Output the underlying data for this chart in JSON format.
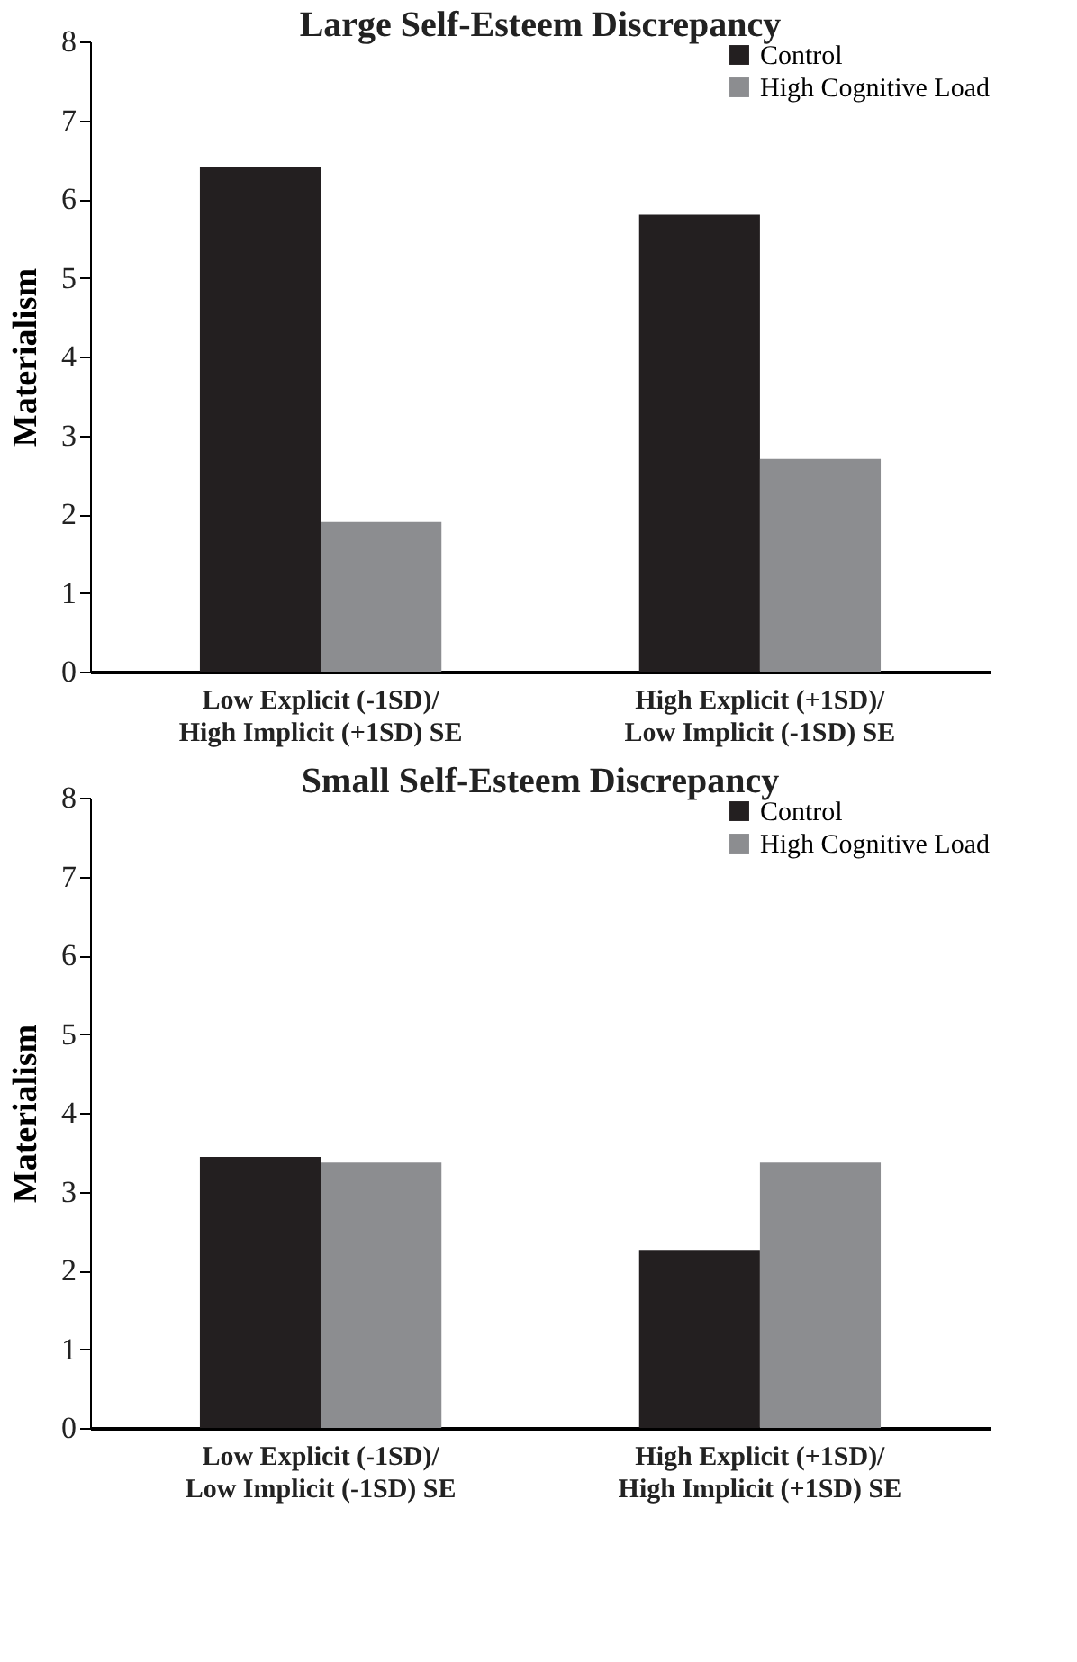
{
  "chart_data": [
    {
      "type": "bar",
      "title": "Large Self-Esteem Discrepancy",
      "ylabel": "Materialism",
      "categories": [
        "Low Explicit (-1SD)/ High Implicit (+1SD) SE",
        "High Explicit (+1SD)/ Low Implicit (-1SD) SE"
      ],
      "series": [
        {
          "name": "Control",
          "color": "#231f20",
          "values": [
            6.4,
            5.8
          ]
        },
        {
          "name": "High Cognitive Load",
          "color": "#8c8d90",
          "values": [
            1.9,
            2.7
          ]
        }
      ],
      "ylim": [
        0,
        8
      ],
      "yticks": [
        0,
        1,
        2,
        3,
        4,
        5,
        6,
        7,
        8
      ],
      "grid": false,
      "legend": "top right"
    },
    {
      "type": "bar",
      "title": "Small Self-Esteem Discrepancy",
      "ylabel": "Materialism",
      "categories": [
        "Low Explicit (-1SD)/ Low Implicit (-1SD) SE",
        "High Explicit (+1SD)/ High Implicit (+1SD) SE"
      ],
      "series": [
        {
          "name": "Control",
          "color": "#231f20",
          "values": [
            3.44,
            2.26
          ]
        },
        {
          "name": "High Cognitive Load",
          "color": "#8c8d90",
          "values": [
            3.37,
            3.37
          ]
        }
      ],
      "ylim": [
        0,
        8
      ],
      "yticks": [
        0,
        1,
        2,
        3,
        4,
        5,
        6,
        7,
        8
      ],
      "grid": false,
      "legend": "top right"
    }
  ]
}
